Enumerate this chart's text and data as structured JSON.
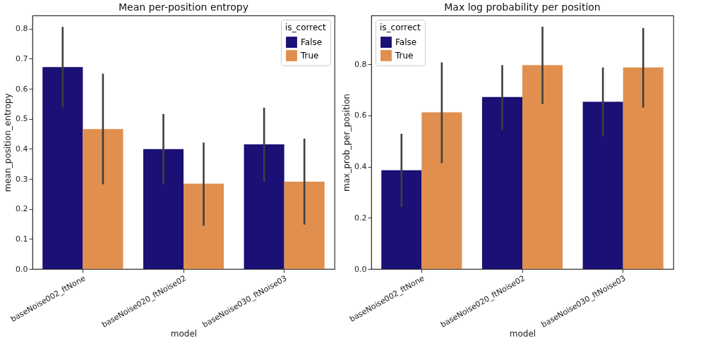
{
  "chart_data": [
    {
      "type": "bar",
      "title": "Mean per-position entropy",
      "xlabel": "model",
      "ylabel": "mean_position_entropy",
      "legend_title": "is_correct",
      "legend": "top right",
      "grid": false,
      "categories": [
        "baseNoise002_ftNone",
        "baseNoise020_ftNoise02",
        "baseNoise030_ftNoise03"
      ],
      "ylim": [
        0,
        0.844
      ],
      "yticks": [
        {
          "value": 0,
          "label": "0.0"
        },
        0.1,
        0.2,
        0.3,
        0.4,
        0.5,
        0.6,
        0.7,
        0.8
      ],
      "series": [
        {
          "name": "False",
          "color": "#1a1075",
          "values": [
            0.672,
            0.399,
            0.415
          ],
          "errors": [
            [
              0.538,
              0.806
            ],
            [
              0.282,
              0.516
            ],
            [
              0.29,
              0.537
            ]
          ]
        },
        {
          "name": "True",
          "color": "#e08f4e",
          "values": [
            0.466,
            0.284,
            0.291
          ],
          "errors": [
            [
              0.282,
              0.65
            ],
            [
              0.144,
              0.421
            ],
            [
              0.148,
              0.434
            ]
          ]
        }
      ]
    },
    {
      "type": "bar",
      "title": "Max log probability per position",
      "xlabel": "model",
      "ylabel": "max_prob_per_position",
      "legend_title": "is_correct",
      "legend": "top left",
      "grid": false,
      "categories": [
        "baseNoise002_ftNone",
        "baseNoise020_ftNoise02",
        "baseNoise030_ftNoise03"
      ],
      "ylim": [
        0,
        0.99
      ],
      "yticks": [
        {
          "value": 0,
          "label": "0.0"
        },
        0.2,
        0.4,
        0.6,
        0.8
      ],
      "series": [
        {
          "name": "False",
          "color": "#1a1075",
          "values": [
            0.386,
            0.672,
            0.653
          ],
          "errors": [
            [
              0.242,
              0.528
            ],
            [
              0.543,
              0.796
            ],
            [
              0.519,
              0.787
            ]
          ]
        },
        {
          "name": "True",
          "color": "#e08f4e",
          "values": [
            0.612,
            0.796,
            0.787
          ],
          "errors": [
            [
              0.413,
              0.807
            ],
            [
              0.644,
              0.946
            ],
            [
              0.63,
              0.941
            ]
          ]
        }
      ]
    }
  ]
}
